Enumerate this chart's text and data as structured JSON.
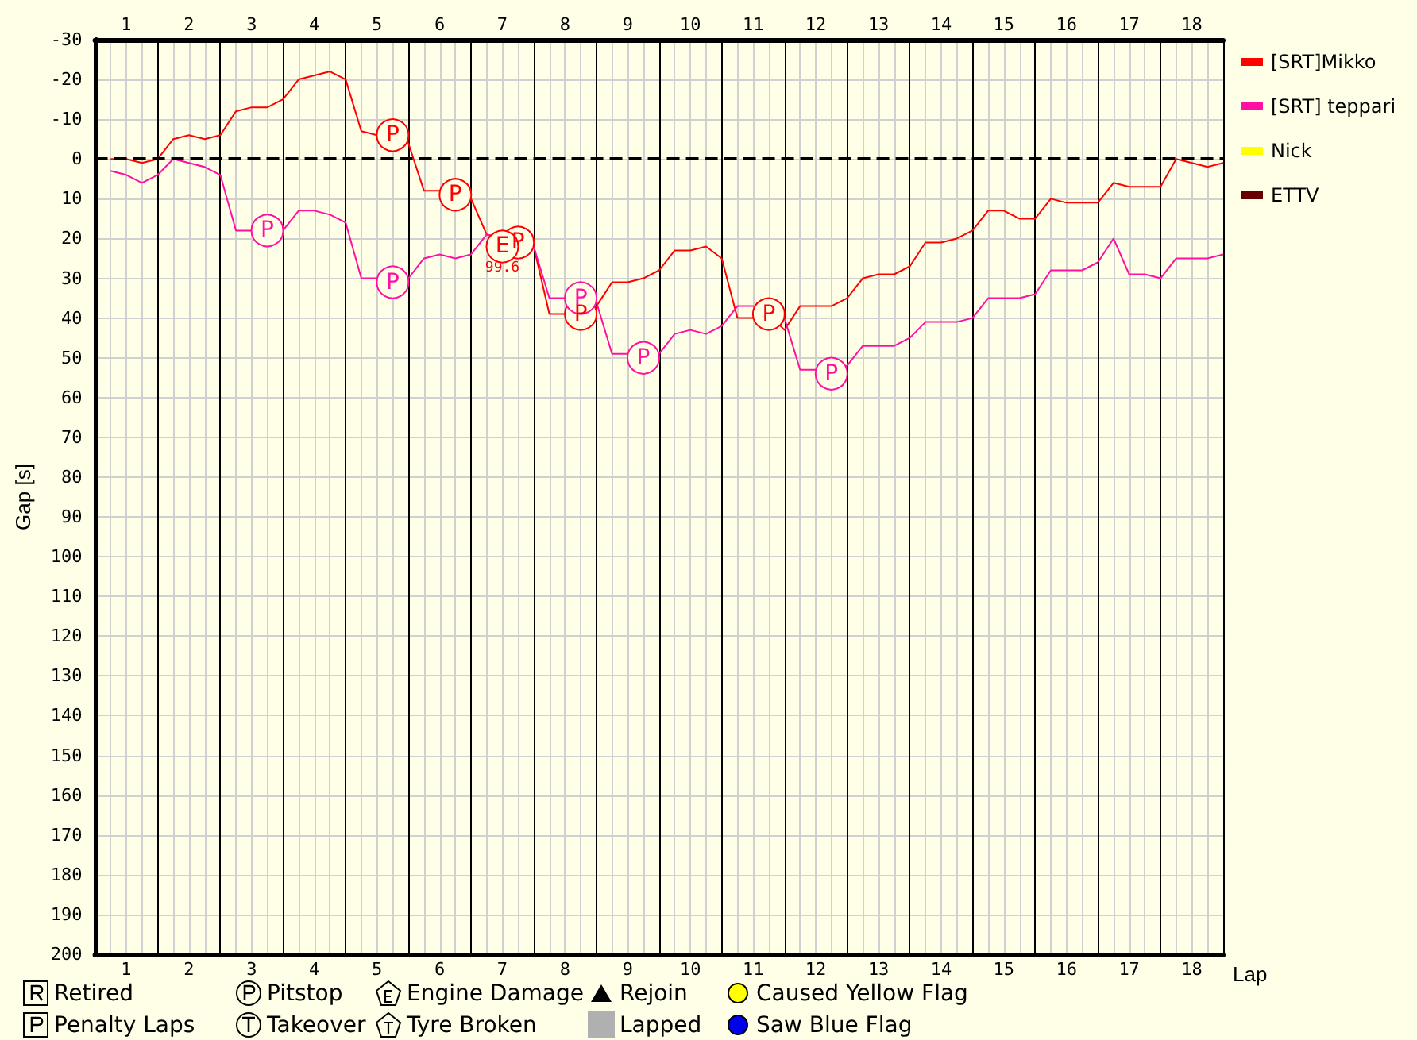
{
  "chart_data": {
    "type": "line",
    "xlabel": "Lap",
    "ylabel": "Gap [s]",
    "x": [
      0.25,
      0.5,
      0.75,
      1,
      1.25,
      1.5,
      1.75,
      2,
      2.25,
      2.5,
      2.75,
      3,
      3.25,
      3.5,
      3.75,
      4,
      4.25,
      4.5,
      4.75,
      5,
      5.25,
      5.5,
      5.75,
      6,
      6.25,
      6.5,
      6.75,
      7,
      7.25,
      7.5,
      7.75,
      8,
      8.25,
      8.5,
      8.75,
      9,
      9.25,
      9.5,
      9.75,
      10,
      10.25,
      10.5,
      10.75,
      11,
      11.25,
      11.5,
      11.75,
      12,
      12.25,
      12.5,
      12.75,
      13,
      13.25,
      13.5,
      13.75,
      14,
      14.25,
      14.5,
      14.75,
      15,
      15.25,
      15.5,
      15.75,
      16,
      16.25,
      16.5,
      16.75,
      17,
      17.25,
      17.5,
      17.75,
      18
    ],
    "series": [
      {
        "name": "[SRT]Mikko",
        "color": "#ff0000",
        "values": [
          0,
          0,
          1,
          0,
          -5,
          -6,
          -5,
          -6,
          -12,
          -13,
          -13,
          -15,
          -20,
          -21,
          -22,
          -20,
          -7,
          -6,
          -6,
          -4,
          8,
          8,
          9,
          10,
          19,
          null,
          null,
          22,
          39,
          39,
          39,
          37,
          31,
          31,
          30,
          28,
          23,
          23,
          22,
          25,
          40,
          40,
          39,
          43,
          37,
          37,
          37,
          35,
          30,
          29,
          29,
          27,
          21,
          21,
          20,
          18,
          13,
          13,
          15,
          15,
          10,
          11,
          11,
          11,
          6,
          7,
          7,
          7,
          0,
          1,
          2,
          1
        ]
      },
      {
        "name": "[SRT] teppari",
        "color": "#ff10a0",
        "values": [
          3,
          4,
          6,
          4,
          0,
          1,
          2,
          4,
          18,
          18,
          18,
          18,
          13,
          13,
          14,
          16,
          30,
          30,
          31,
          30,
          25,
          24,
          25,
          24,
          19,
          null,
          null,
          22,
          35,
          35,
          35,
          36,
          49,
          49,
          50,
          49,
          44,
          43,
          44,
          42,
          37,
          37,
          null,
          40,
          53,
          53,
          54,
          52,
          47,
          47,
          47,
          45,
          41,
          41,
          41,
          40,
          35,
          35,
          35,
          34,
          28,
          28,
          28,
          26,
          20,
          29,
          29,
          30,
          25,
          25,
          25,
          24
        ]
      },
      {
        "name": "Nick",
        "color": "#ffff00",
        "values": [
          null,
          null,
          null,
          null,
          null,
          null,
          null,
          null,
          null,
          null,
          null,
          null,
          null,
          null,
          null,
          null,
          null,
          null,
          null,
          null,
          null,
          null,
          null,
          null,
          null,
          null,
          null,
          null,
          null,
          null,
          null,
          null,
          null,
          null,
          null,
          null,
          null,
          null,
          null,
          null,
          null,
          null,
          null,
          null,
          null,
          null,
          null,
          null,
          null,
          null,
          null,
          null,
          null,
          null,
          null,
          null,
          null,
          null,
          null,
          null,
          null,
          null,
          null,
          null,
          null,
          null,
          null,
          null,
          null,
          null,
          null,
          null
        ]
      },
      {
        "name": "ETTV",
        "color": "#660000",
        "values": [
          null,
          null,
          null,
          null,
          null,
          null,
          null,
          null,
          null,
          null,
          null,
          null,
          null,
          null,
          null,
          null,
          null,
          null,
          null,
          null,
          null,
          null,
          null,
          null,
          null,
          null,
          null,
          null,
          null,
          null,
          null,
          null,
          null,
          null,
          null,
          null,
          null,
          null,
          null,
          null,
          null,
          null,
          null,
          null,
          null,
          null,
          null,
          null,
          null,
          null,
          null,
          null,
          null,
          null,
          null,
          null,
          null,
          null,
          null,
          null,
          null,
          null,
          null,
          null,
          null,
          null,
          null,
          null,
          null,
          null,
          null,
          null
        ]
      }
    ],
    "xlim": [
      0,
      18
    ],
    "xticks": [
      {
        "value": 0.5,
        "label": "1"
      },
      {
        "value": 1.5,
        "label": "2"
      },
      {
        "value": 2.5,
        "label": "3"
      },
      {
        "value": 3.5,
        "label": "4"
      },
      {
        "value": 4.5,
        "label": "5"
      },
      {
        "value": 5.5,
        "label": "6"
      },
      {
        "value": 6.5,
        "label": "7"
      },
      {
        "value": 7.5,
        "label": "8"
      },
      {
        "value": 8.5,
        "label": "9"
      },
      {
        "value": 9.5,
        "label": "10"
      },
      {
        "value": 10.5,
        "label": "11"
      },
      {
        "value": 11.5,
        "label": "12"
      },
      {
        "value": 12.5,
        "label": "13"
      },
      {
        "value": 13.5,
        "label": "14"
      },
      {
        "value": 14.5,
        "label": "15"
      },
      {
        "value": 15.5,
        "label": "16"
      },
      {
        "value": 16.5,
        "label": "17"
      },
      {
        "value": 17.5,
        "label": "18"
      }
    ],
    "x2lim": [
      0,
      18
    ],
    "x2ticks": [
      {
        "value": 0.5,
        "label": "1"
      },
      {
        "value": 1.5,
        "label": "2"
      },
      {
        "value": 2.5,
        "label": "3"
      },
      {
        "value": 3.5,
        "label": "4"
      },
      {
        "value": 4.5,
        "label": "5"
      },
      {
        "value": 5.5,
        "label": "6"
      },
      {
        "value": 6.5,
        "label": "7"
      },
      {
        "value": 7.5,
        "label": "8"
      },
      {
        "value": 8.5,
        "label": "9"
      },
      {
        "value": 9.5,
        "label": "10"
      },
      {
        "value": 10.5,
        "label": "11"
      },
      {
        "value": 11.5,
        "label": "12"
      },
      {
        "value": 12.5,
        "label": "13"
      },
      {
        "value": 13.5,
        "label": "14"
      },
      {
        "value": 14.5,
        "label": "15"
      },
      {
        "value": 15.5,
        "label": "16"
      },
      {
        "value": 16.5,
        "label": "17"
      },
      {
        "value": 17.5,
        "label": "18"
      }
    ],
    "ylim": [
      200,
      -30
    ],
    "yticks": [
      -30,
      -20,
      -10,
      0,
      10,
      20,
      30,
      40,
      50,
      60,
      70,
      80,
      90,
      100,
      110,
      120,
      130,
      140,
      150,
      160,
      170,
      180,
      190,
      200
    ],
    "ref_lines": [
      {
        "axis": "y",
        "value": 0,
        "color": "#000000",
        "line_style": "dashed"
      }
    ],
    "annotations": [
      "Retired",
      "Penalty Laps",
      "Pitstop",
      "Takeover",
      "Engine Damage",
      "Tyre Broken",
      "Rejoin",
      "Lapped",
      "Caused Yellow Flag",
      "Saw Blue Flag",
      {
        "text": "P",
        "x": 2.75,
        "y": 18
      },
      {
        "text": "P",
        "x": 4.75,
        "y": -6
      },
      {
        "text": "P",
        "x": 4.75,
        "y": 31
      },
      {
        "text": "P",
        "x": 5.75,
        "y": 9
      },
      {
        "text": "P",
        "x": 6.75,
        "y": 21
      },
      {
        "text": "E",
        "x": 6.5,
        "y": 22
      },
      "99.6",
      {
        "text": "P",
        "x": 7.75,
        "y": 35
      },
      {
        "text": "P",
        "x": 7.75,
        "y": 39
      },
      {
        "text": "P",
        "x": 8.75,
        "y": 50
      },
      {
        "text": "P",
        "x": 10.75,
        "y": 39
      },
      {
        "text": "P",
        "x": 11.75,
        "y": 54
      }
    ],
    "grid": true,
    "legend": "right",
    "marker": "none",
    "line_style": "solid"
  }
}
